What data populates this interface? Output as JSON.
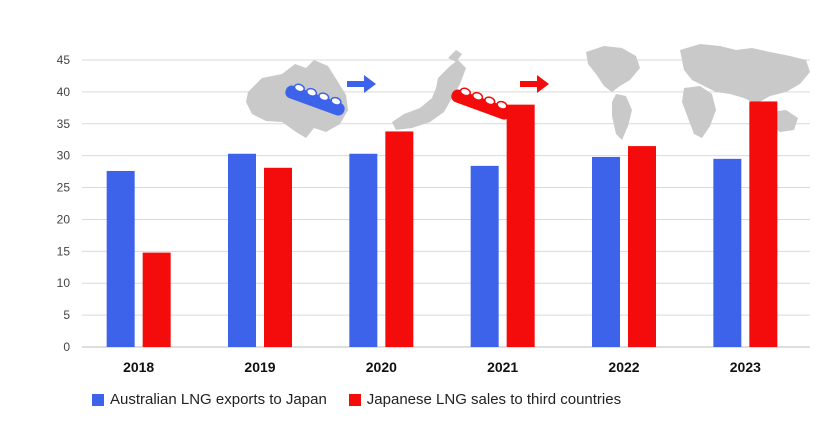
{
  "colors": {
    "australia": "#3d63ea",
    "japan": "#f40b0b",
    "grid": "#d9d9d9",
    "map": "#c9c9c9"
  },
  "illustrations": [
    "australia-map-icon",
    "ship-icon",
    "arrow-right-icon",
    "japan-map-icon",
    "ship-icon",
    "arrow-right-icon",
    "world-map-icon"
  ],
  "chart_data": {
    "type": "bar",
    "categories": [
      "2018",
      "2019",
      "2020",
      "2021",
      "2022",
      "2023"
    ],
    "series": [
      {
        "name": "Australian LNG exports to Japan",
        "values": [
          27.6,
          30.3,
          30.3,
          28.4,
          29.8,
          29.5
        ]
      },
      {
        "name": "Japanese LNG sales to third countries",
        "values": [
          14.8,
          28.1,
          33.8,
          38.0,
          31.5,
          38.5
        ]
      }
    ],
    "yticks": [
      0,
      5,
      10,
      15,
      20,
      25,
      30,
      35,
      40,
      45
    ],
    "ylim": [
      0,
      45
    ],
    "grid": true,
    "legend_position": "bottom-left"
  }
}
